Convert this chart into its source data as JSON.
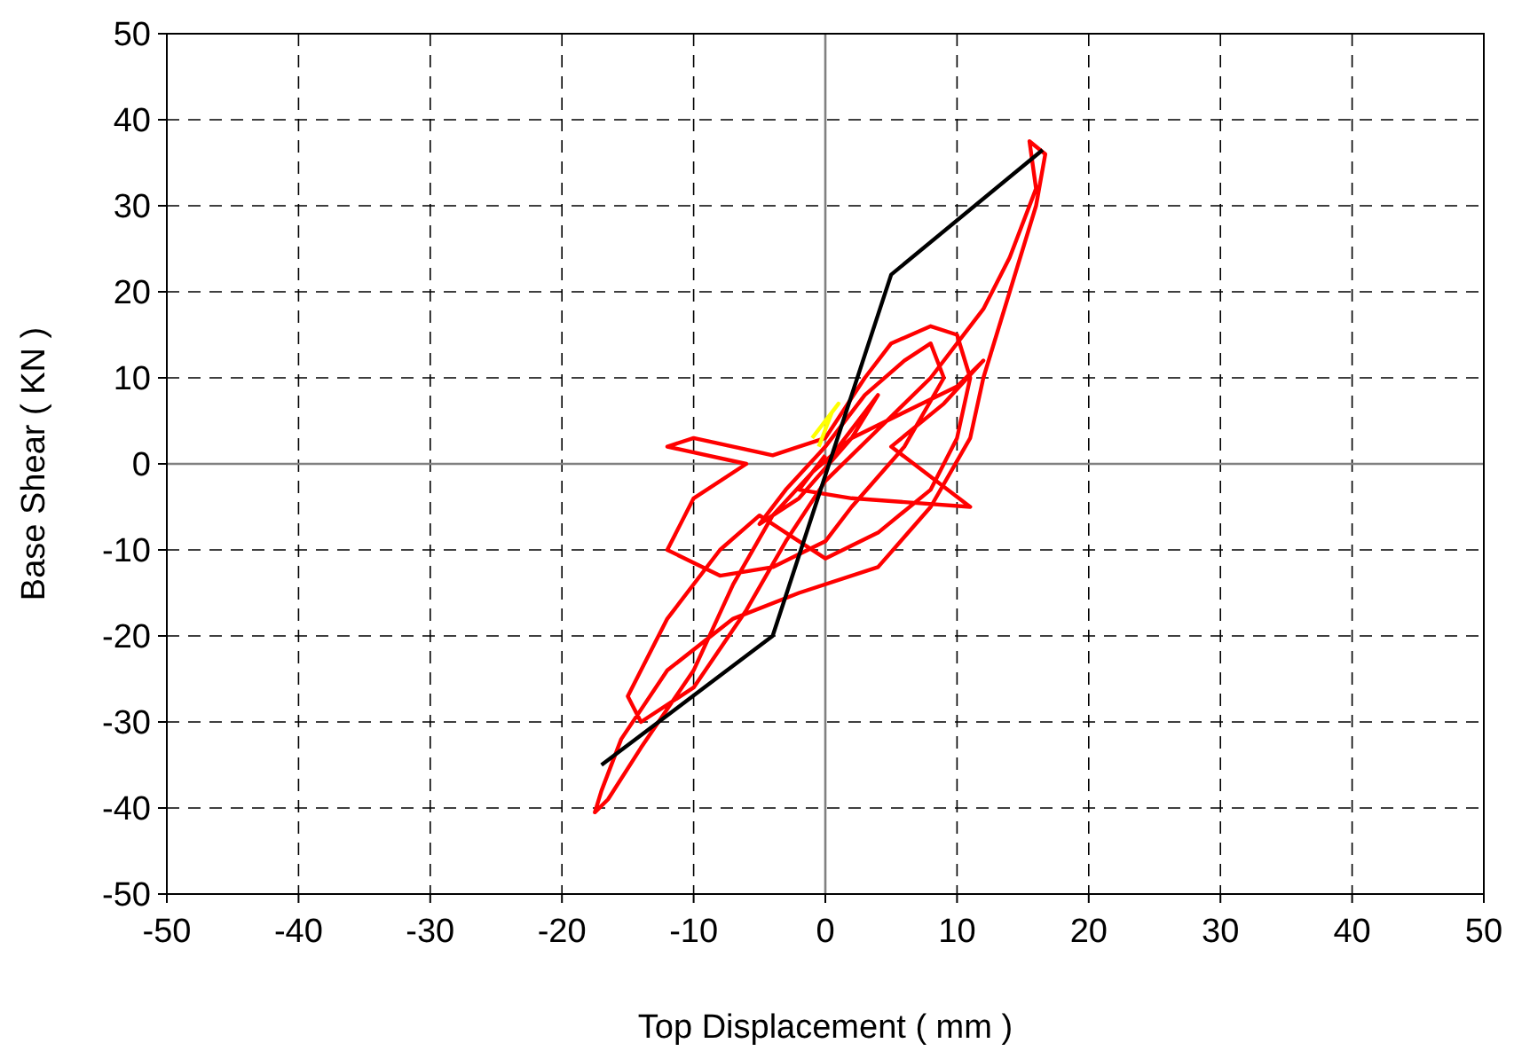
{
  "chart_data": {
    "type": "line",
    "xlabel": "Top Displacement ( mm )",
    "ylabel": "Base Shear ( KN )",
    "xlim": [
      -50,
      50
    ],
    "ylim": [
      -50,
      50
    ],
    "xticks": [
      -50,
      -40,
      -30,
      -20,
      -10,
      0,
      10,
      20,
      30,
      40,
      50
    ],
    "yticks": [
      -50,
      -40,
      -30,
      -20,
      -10,
      0,
      10,
      20,
      30,
      40,
      50
    ],
    "grid": true,
    "marker": "none",
    "line_style": "solid",
    "series": [
      {
        "color": "#ff0000",
        "x": [
          0,
          2,
          4,
          2,
          -2,
          -5,
          -3,
          0,
          3,
          6,
          8,
          9,
          6,
          2,
          0,
          -4,
          -8,
          -12,
          -10,
          -6,
          -12,
          -10,
          -4,
          0,
          3,
          5,
          8,
          10,
          11,
          10,
          8,
          4,
          0,
          -3,
          -5,
          -8,
          -12,
          -15,
          -14,
          -10,
          -6,
          -3,
          0,
          4,
          8,
          12,
          14,
          16,
          15.5,
          16.7,
          16,
          14,
          12,
          11,
          8,
          4,
          -2,
          -7,
          -12,
          -15.5,
          -17,
          -17.5,
          -16.5,
          -14,
          -10,
          -7,
          -4,
          -1,
          2,
          6,
          10,
          12,
          9,
          5,
          11,
          2,
          -2,
          0
        ],
        "values": [
          0,
          4,
          8,
          3,
          -4,
          -7,
          -3,
          2,
          8,
          12,
          14,
          10,
          2,
          -5,
          -9,
          -12,
          -13,
          -10,
          -4,
          0,
          2,
          3,
          1,
          3,
          10,
          14,
          16,
          15,
          10,
          3,
          -3,
          -8,
          -11,
          -8,
          -6,
          -10,
          -18,
          -27,
          -30,
          -26,
          -17,
          -9,
          -2,
          4,
          10,
          18,
          24,
          32,
          37.5,
          36,
          30,
          20,
          10,
          3,
          -5,
          -12,
          -15,
          -18,
          -24,
          -32,
          -38,
          -40.5,
          -39,
          -33,
          -24,
          -14,
          -6,
          -1,
          3,
          6,
          9,
          12,
          7,
          2,
          -5,
          -4,
          -3,
          1
        ]
      },
      {
        "color": "#ffff00",
        "x": [
          -0.5,
          0,
          0.5,
          1,
          0,
          -1
        ],
        "values": [
          2,
          4,
          6,
          7,
          5,
          3
        ]
      },
      {
        "color": "#000000",
        "x": [
          -17,
          -4,
          5,
          16.5
        ],
        "values": [
          -35,
          -20,
          22,
          36.5
        ]
      }
    ]
  }
}
